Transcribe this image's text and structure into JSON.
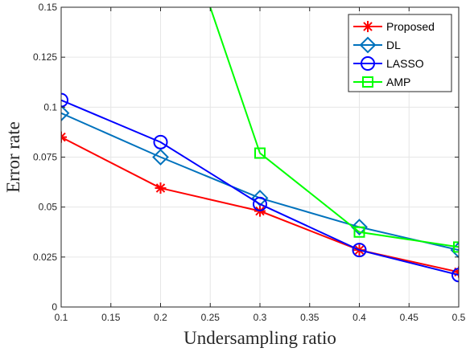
{
  "chart_data": {
    "type": "line",
    "xlabel": "Undersampling ratio",
    "ylabel": "Error rate",
    "xlim": [
      0.1,
      0.5
    ],
    "ylim": [
      0,
      0.15
    ],
    "xticks": [
      "0.1",
      "0.15",
      "0.2",
      "0.25",
      "0.3",
      "0.35",
      "0.4",
      "0.45",
      "0.5"
    ],
    "yticks": [
      "0",
      "0.025",
      "0.05",
      "0.075",
      "0.1",
      "0.125",
      "0.15"
    ],
    "grid": true,
    "legend_position": "top-right",
    "series": [
      {
        "name": "Proposed",
        "color": "#ff0000",
        "marker": "asterisk",
        "x": [
          0.1,
          0.2,
          0.3,
          0.4,
          0.5
        ],
        "y": [
          0.085,
          0.0595,
          0.048,
          0.0285,
          0.0175
        ]
      },
      {
        "name": "DL",
        "color": "#0072bd",
        "marker": "diamond",
        "x": [
          0.1,
          0.2,
          0.3,
          0.4,
          0.5
        ],
        "y": [
          0.097,
          0.075,
          0.0545,
          0.04,
          0.0285
        ]
      },
      {
        "name": "LASSO",
        "color": "#0000ff",
        "marker": "circle",
        "x": [
          0.1,
          0.2,
          0.3,
          0.4,
          0.5
        ],
        "y": [
          0.1035,
          0.0825,
          0.0515,
          0.0285,
          0.016
        ]
      },
      {
        "name": "AMP",
        "color": "#00ff00",
        "marker": "square",
        "x": [
          0.25,
          0.3,
          0.4,
          0.5
        ],
        "y": [
          0.15,
          0.077,
          0.0375,
          0.03
        ]
      }
    ]
  }
}
